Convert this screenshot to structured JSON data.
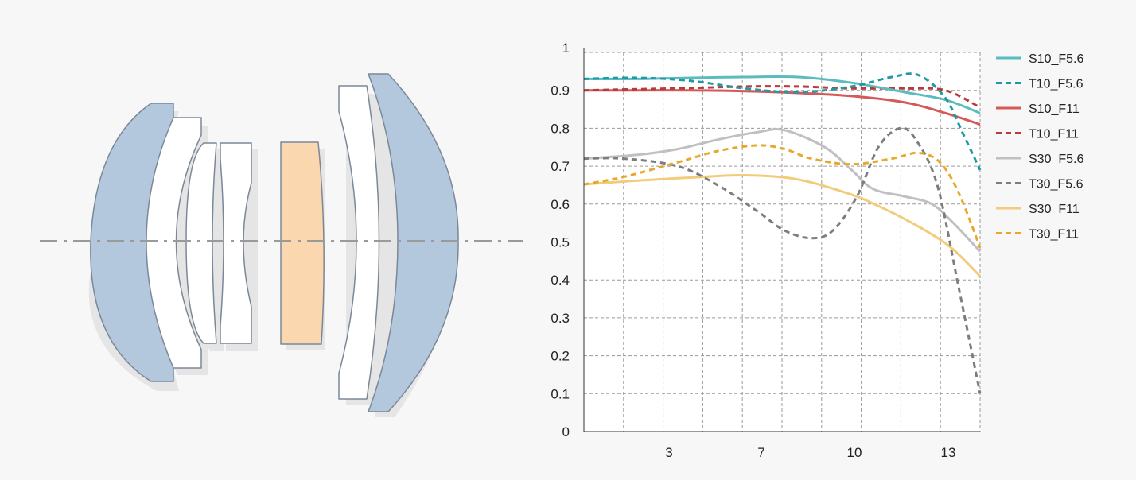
{
  "chart_data": {
    "type": "line",
    "title": "",
    "xlabel": "",
    "ylabel": "",
    "xlim": [
      0,
      14.8
    ],
    "ylim": [
      0,
      1
    ],
    "x_ticks": [
      3,
      7,
      10,
      13
    ],
    "y_ticks": [
      0,
      0.1,
      0.2,
      0.3,
      0.4,
      0.5,
      0.6,
      0.7,
      0.8,
      0.9,
      1
    ],
    "y_tick_labels": [
      "0",
      "0.1",
      "0.2",
      "0.3",
      "0.4",
      "0.5",
      "0.6",
      "0.7",
      "0.8",
      "0.9",
      "1"
    ],
    "x_tick_labels": [
      "3",
      "7",
      "10",
      "13"
    ],
    "grid": true,
    "legend_position": "right",
    "series": [
      {
        "name": "S10_F5.6",
        "color": "#5bbcbf",
        "dash": "solid",
        "x": [
          0,
          2,
          4,
          6,
          8,
          10,
          12,
          13.5,
          14.8
        ],
        "y": [
          0.93,
          0.93,
          0.933,
          0.935,
          0.935,
          0.92,
          0.895,
          0.875,
          0.84
        ]
      },
      {
        "name": "T10_F5.6",
        "color": "#1e9aa6",
        "dash": "dashed",
        "x": [
          0,
          2,
          4,
          6,
          8,
          10,
          11.5,
          12.5,
          13.5,
          14.2,
          14.8
        ],
        "y": [
          0.93,
          0.933,
          0.925,
          0.905,
          0.895,
          0.91,
          0.935,
          0.94,
          0.88,
          0.78,
          0.69
        ]
      },
      {
        "name": "S10_F11",
        "color": "#d45a5a",
        "dash": "solid",
        "x": [
          0,
          2,
          4,
          6,
          8,
          10,
          12,
          13.5,
          14.8
        ],
        "y": [
          0.9,
          0.9,
          0.9,
          0.898,
          0.893,
          0.885,
          0.868,
          0.84,
          0.81
        ]
      },
      {
        "name": "T10_F11",
        "color": "#b83a3a",
        "dash": "dashed",
        "x": [
          0,
          2,
          4,
          6,
          8,
          10,
          12,
          13.5,
          14.8
        ],
        "y": [
          0.9,
          0.903,
          0.906,
          0.91,
          0.91,
          0.905,
          0.905,
          0.9,
          0.855
        ]
      },
      {
        "name": "S30_F5.6",
        "color": "#c0c0c4",
        "dash": "solid",
        "x": [
          0,
          2,
          3.5,
          5,
          6.5,
          7.5,
          9,
          10,
          10.8,
          12,
          13,
          13.8,
          14.8
        ],
        "y": [
          0.72,
          0.73,
          0.745,
          0.77,
          0.79,
          0.795,
          0.75,
          0.69,
          0.64,
          0.62,
          0.6,
          0.55,
          0.475
        ]
      },
      {
        "name": "T30_F5.6",
        "color": "#7d7d80",
        "dash": "dashed",
        "x": [
          0,
          1.5,
          3.5,
          5,
          6.5,
          7.5,
          8.5,
          9.3,
          10.2,
          11,
          11.8,
          12.4,
          13.2,
          14,
          14.8
        ],
        "y": [
          0.72,
          0.72,
          0.7,
          0.65,
          0.58,
          0.53,
          0.51,
          0.53,
          0.62,
          0.75,
          0.8,
          0.77,
          0.65,
          0.38,
          0.1
        ]
      },
      {
        "name": "S30_F11",
        "color": "#f2cc7a",
        "dash": "solid",
        "x": [
          0,
          2,
          4,
          6,
          8,
          10,
          11,
          12,
          13,
          13.8,
          14.8
        ],
        "y": [
          0.652,
          0.662,
          0.67,
          0.676,
          0.665,
          0.625,
          0.595,
          0.56,
          0.52,
          0.48,
          0.41
        ]
      },
      {
        "name": "T30_F11",
        "color": "#e8a92b",
        "dash": "dashed",
        "x": [
          0,
          1.5,
          3.5,
          5,
          6.5,
          7.5,
          8.5,
          10,
          11.5,
          12.5,
          13.3,
          14,
          14.8
        ],
        "y": [
          0.652,
          0.672,
          0.71,
          0.74,
          0.755,
          0.745,
          0.72,
          0.705,
          0.72,
          0.735,
          0.71,
          0.63,
          0.485
        ]
      }
    ]
  },
  "lens_diagram": {
    "colors": {
      "front_element": "#b3c7dd",
      "rear_element": "#b3c7dd",
      "inner_element": "#ffffff",
      "filter_element": "#fbd7b0",
      "outline": "#7b8898",
      "axis": "#9a9a9a"
    }
  }
}
